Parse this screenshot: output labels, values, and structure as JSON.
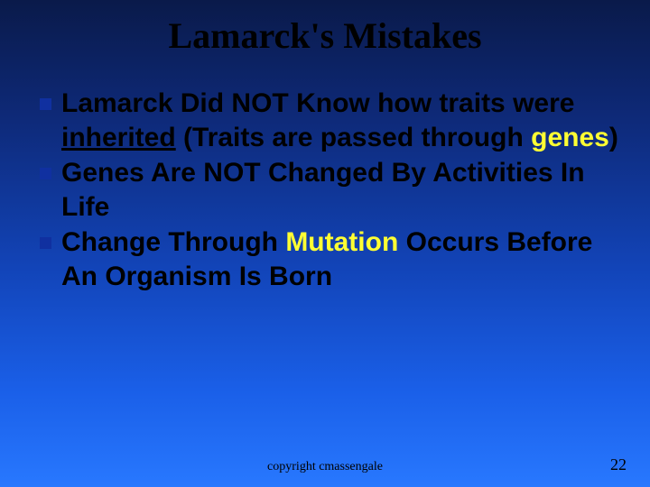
{
  "slide": {
    "title": "Lamarck's  Mistakes",
    "bullets": [
      {
        "lead": "Lamarck",
        "mid1": " Did NOT Know how traits were ",
        "underlined": "inherited",
        "mid2": " (Traits are passed through ",
        "yellow": "genes",
        "mid3": ")"
      },
      {
        "lead": "Genes",
        "mid1": " Are NOT Changed By Activities In Life"
      },
      {
        "lead": "Change",
        "mid1": " Through ",
        "yellow": "Mutation",
        "mid2": " Occurs Before An Organism Is Born"
      }
    ],
    "footer": "copyright cmassengale",
    "page": "22"
  },
  "style": {
    "background_gradient": [
      "#0a1a4a",
      "#0e2a7a",
      "#1244b8",
      "#1a5fe8",
      "#2878ff"
    ],
    "title_fontsize": 40,
    "title_font": "Times New Roman",
    "body_fontsize": 30,
    "body_font": "Comic Sans MS",
    "bullet_square_color": "#1030a0",
    "bullet_square_size": 13,
    "yellow_color": "#ffff33",
    "footer_fontsize": 14,
    "page_fontsize": 18,
    "slide_width": 720,
    "slide_height": 540
  }
}
